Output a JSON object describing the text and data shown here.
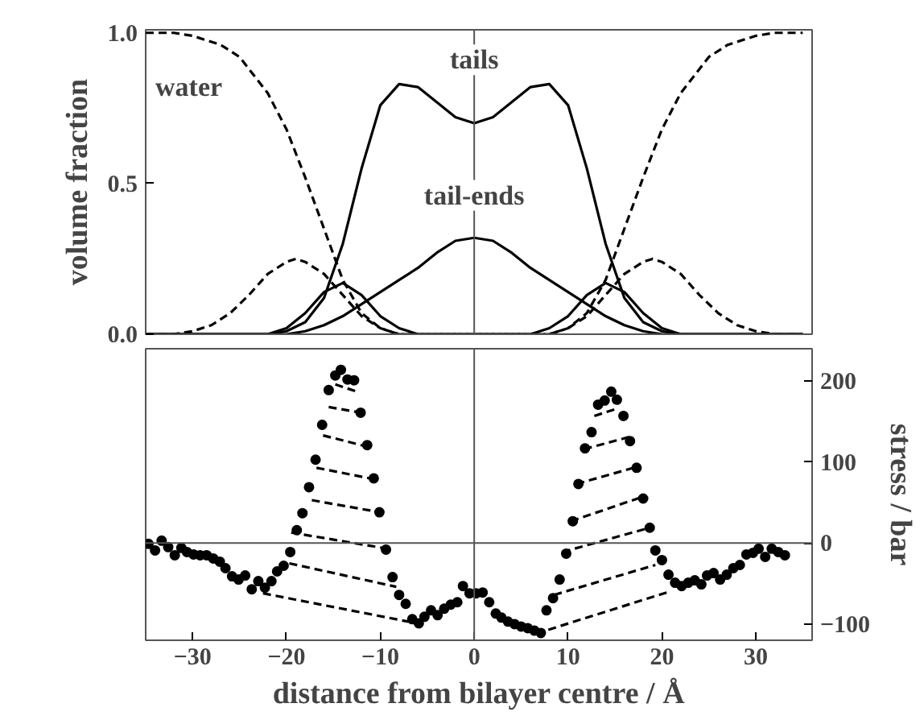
{
  "chart_data": [
    {
      "type": "line",
      "ylabel": "volume fraction",
      "xlim": [
        -35,
        36
      ],
      "ylim": [
        0,
        1.01
      ],
      "yticks": [
        {
          "value": 0,
          "label": "0.0"
        },
        {
          "value": 0.5,
          "label": "0.5"
        },
        {
          "value": 1,
          "label": "1.0"
        }
      ],
      "tick_labels": "y",
      "grid": false,
      "annotations": [
        "water",
        {
          "text": "tails",
          "x": 0,
          "y": 0.86
        },
        {
          "text": "tail-ends",
          "x": 0,
          "y": 0.41
        }
      ],
      "ref_lines": [
        {
          "axis": "x",
          "value": 0,
          "label": null,
          "color": "#555555"
        }
      ],
      "series": [
        {
          "color": "#000000",
          "line_style": "dashed",
          "x": [
            -35,
            -32,
            -30,
            -27,
            -25,
            -22,
            -20,
            -18,
            -16,
            -14,
            -12,
            -10,
            -8,
            -4,
            0,
            4,
            8,
            10,
            12,
            14,
            16,
            18,
            20,
            22,
            25,
            27,
            30,
            32,
            35
          ],
          "values": [
            1.0,
            1.0,
            0.99,
            0.96,
            0.92,
            0.8,
            0.68,
            0.52,
            0.35,
            0.18,
            0.07,
            0.02,
            0.0,
            0.0,
            0.0,
            0.0,
            0.0,
            0.02,
            0.07,
            0.18,
            0.35,
            0.52,
            0.68,
            0.8,
            0.92,
            0.96,
            0.99,
            1.0,
            1.0
          ]
        },
        {
          "color": "#000000",
          "line_style": "solid",
          "x": [
            -35,
            -22,
            -20,
            -18,
            -16,
            -14,
            -12,
            -10,
            -8,
            -6,
            -4,
            -2,
            0,
            2,
            4,
            6,
            8,
            10,
            12,
            14,
            16,
            18,
            20,
            22,
            35
          ],
          "values": [
            0,
            0,
            0.01,
            0.04,
            0.12,
            0.3,
            0.55,
            0.76,
            0.83,
            0.82,
            0.77,
            0.72,
            0.7,
            0.72,
            0.77,
            0.82,
            0.83,
            0.76,
            0.55,
            0.3,
            0.12,
            0.04,
            0.01,
            0,
            0
          ]
        },
        {
          "color": "#000000",
          "line_style": "solid",
          "x": [
            -35,
            -20,
            -18,
            -16,
            -14,
            -12,
            -10,
            -8,
            -6,
            -4,
            -2,
            0,
            2,
            4,
            6,
            8,
            10,
            12,
            14,
            16,
            18,
            20,
            35
          ],
          "values": [
            0,
            0,
            0.01,
            0.03,
            0.06,
            0.1,
            0.14,
            0.18,
            0.22,
            0.27,
            0.31,
            0.32,
            0.31,
            0.27,
            0.22,
            0.18,
            0.14,
            0.1,
            0.06,
            0.03,
            0.01,
            0,
            0
          ]
        },
        {
          "color": "#000000",
          "line_style": "dashed",
          "x": [
            -35,
            -32,
            -30,
            -28,
            -26,
            -24,
            -22,
            -20,
            -19,
            -18,
            -16,
            -14,
            -12,
            -10,
            -8,
            8,
            10,
            12,
            14,
            16,
            18,
            19,
            20,
            22,
            24,
            26,
            28,
            30,
            32,
            35
          ],
          "values": [
            0,
            0,
            0.01,
            0.03,
            0.07,
            0.13,
            0.2,
            0.24,
            0.25,
            0.24,
            0.2,
            0.13,
            0.06,
            0.02,
            0,
            0,
            0.02,
            0.06,
            0.13,
            0.2,
            0.24,
            0.25,
            0.24,
            0.2,
            0.13,
            0.07,
            0.03,
            0.01,
            0,
            0
          ]
        },
        {
          "color": "#000000",
          "line_style": "solid",
          "x": [
            -35,
            -22,
            -20,
            -18,
            -16,
            -14,
            -12,
            -10,
            -8,
            -6,
            6,
            8,
            10,
            12,
            14,
            16,
            18,
            20,
            22,
            35
          ],
          "values": [
            0,
            0,
            0.02,
            0.07,
            0.14,
            0.17,
            0.13,
            0.06,
            0.02,
            0,
            0,
            0.02,
            0.06,
            0.13,
            0.17,
            0.14,
            0.07,
            0.02,
            0,
            0
          ]
        }
      ]
    },
    {
      "type": "scatter",
      "xlabel": "distance from bilayer centre / Å",
      "y2label": "stress / bar",
      "xlim": [
        -35,
        36
      ],
      "xticks": [
        -30,
        -20,
        -10,
        0,
        10,
        20,
        30
      ],
      "y2lim": [
        -120,
        240
      ],
      "y2ticks": [
        -100,
        0,
        100,
        200
      ],
      "grid": false,
      "ref_lines": [
        {
          "axis": "x",
          "value": 0,
          "label": null,
          "color": "#555555"
        },
        {
          "axis": "y2",
          "value": 0,
          "label": null,
          "color": "#555555"
        }
      ],
      "series": [
        {
          "color": "#000000",
          "axis": "y2",
          "marker": "circle",
          "x": [
            -34.7,
            -34.0,
            -33.3,
            -32.6,
            -31.9,
            -31.2,
            -30.6,
            -29.9,
            -29.2,
            -28.5,
            -27.8,
            -27.1,
            -26.5,
            -25.8,
            -25.1,
            -24.4,
            -23.7,
            -23.0,
            -22.3,
            -21.6,
            -21.0,
            -20.3,
            -19.6,
            -18.9,
            -18.3,
            -17.6,
            -16.9,
            -16.2,
            -15.5,
            -14.8,
            -14.2,
            -13.5,
            -12.8,
            -12.1,
            -11.4,
            -10.7,
            -10.1,
            -9.4,
            -8.7,
            -8.0,
            -7.3,
            -6.6,
            -5.9,
            -5.3,
            -4.6,
            -3.9,
            -3.2,
            -2.5,
            -1.8,
            -1.2,
            -0.5,
            0.2,
            0.9,
            1.6,
            2.3,
            2.9,
            3.6,
            4.3,
            5.0,
            5.7,
            6.4,
            7.1,
            7.7,
            8.4,
            9.1,
            9.8,
            10.5,
            11.1,
            11.8,
            12.5,
            13.2,
            13.9,
            14.6,
            15.2,
            15.9,
            16.6,
            17.3,
            18.0,
            18.7,
            19.3,
            20.0,
            20.7,
            21.4,
            22.1,
            22.8,
            23.5,
            24.2,
            24.8,
            25.5,
            26.2,
            26.9,
            27.6,
            28.3,
            29.0,
            29.7,
            30.3,
            31.0,
            31.7,
            32.4,
            33.1
          ],
          "values": [
            -1,
            -9,
            3,
            -5,
            -15,
            -6,
            -11,
            -14,
            -15,
            -15,
            -19,
            -23,
            -31,
            -41,
            -45,
            -40,
            -57,
            -47,
            -55,
            -47,
            -35,
            -28,
            -11,
            16,
            37,
            69,
            103,
            146,
            189,
            207,
            214,
            202,
            201,
            161,
            121,
            80,
            38,
            -8,
            -42,
            -64,
            -75,
            -94,
            -99,
            -91,
            -83,
            -89,
            -81,
            -76,
            -73,
            -53,
            -62,
            -62,
            -61,
            -73,
            -87,
            -92,
            -97,
            -100,
            -103,
            -105,
            -108,
            -111,
            -83,
            -68,
            -45,
            -13,
            27,
            73,
            117,
            137,
            171,
            176,
            187,
            177,
            157,
            126,
            93,
            55,
            19,
            -9,
            -21,
            -39,
            -49,
            -53,
            -49,
            -46,
            -51,
            -40,
            -37,
            -45,
            -39,
            -31,
            -27,
            -14,
            -12,
            -7,
            -17,
            -7,
            -11,
            -15
          ]
        },
        {
          "type": "line",
          "color": "#000000",
          "axis": "y2",
          "line_style": "dashed",
          "x": [
            -14.8,
            -12.5
          ],
          "values": [
            196,
            187
          ]
        },
        {
          "type": "line",
          "color": "#000000",
          "axis": "y2",
          "line_style": "dashed",
          "x": [
            -15.5,
            -12.0
          ],
          "values": [
            168,
            161
          ]
        },
        {
          "type": "line",
          "color": "#000000",
          "axis": "y2",
          "line_style": "dashed",
          "x": [
            -16.1,
            -11.4
          ],
          "values": [
            133,
            119
          ]
        },
        {
          "type": "line",
          "color": "#000000",
          "axis": "y2",
          "line_style": "dashed",
          "x": [
            -16.8,
            -10.7
          ],
          "values": [
            93,
            79
          ]
        },
        {
          "type": "line",
          "color": "#000000",
          "axis": "y2",
          "line_style": "dashed",
          "x": [
            -17.3,
            -10.0
          ],
          "values": [
            53,
            38
          ]
        },
        {
          "type": "line",
          "color": "#000000",
          "axis": "y2",
          "line_style": "dashed",
          "x": [
            -19.5,
            -9.7
          ],
          "values": [
            13,
            -6
          ]
        },
        {
          "type": "line",
          "color": "#000000",
          "axis": "y2",
          "line_style": "dashed",
          "x": [
            -19.7,
            -8.3
          ],
          "values": [
            -25,
            -54
          ]
        },
        {
          "type": "line",
          "color": "#000000",
          "axis": "y2",
          "line_style": "dashed",
          "x": [
            -22.5,
            -7.0
          ],
          "values": [
            -62,
            -97
          ]
        },
        {
          "type": "line",
          "color": "#000000",
          "axis": "y2",
          "line_style": "dashed",
          "x": [
            12.8,
            15.2
          ],
          "values": [
            157,
            166
          ]
        },
        {
          "type": "line",
          "color": "#000000",
          "axis": "y2",
          "line_style": "dashed",
          "x": [
            11.7,
            16.5
          ],
          "values": [
            116,
            131
          ]
        },
        {
          "type": "line",
          "color": "#000000",
          "axis": "y2",
          "line_style": "dashed",
          "x": [
            10.9,
            17.3
          ],
          "values": [
            73,
            94
          ]
        },
        {
          "type": "line",
          "color": "#000000",
          "axis": "y2",
          "line_style": "dashed",
          "x": [
            10.3,
            17.9
          ],
          "values": [
            27,
            57
          ]
        },
        {
          "type": "line",
          "color": "#000000",
          "axis": "y2",
          "line_style": "dashed",
          "x": [
            9.4,
            18.7
          ],
          "values": [
            -11,
            19
          ]
        },
        {
          "type": "line",
          "color": "#000000",
          "axis": "y2",
          "line_style": "dashed",
          "x": [
            8.5,
            19.3
          ],
          "values": [
            -64,
            -27
          ]
        },
        {
          "type": "line",
          "color": "#000000",
          "axis": "y2",
          "line_style": "dashed",
          "x": [
            7.9,
            20.5
          ],
          "values": [
            -107,
            -61
          ]
        }
      ]
    }
  ]
}
